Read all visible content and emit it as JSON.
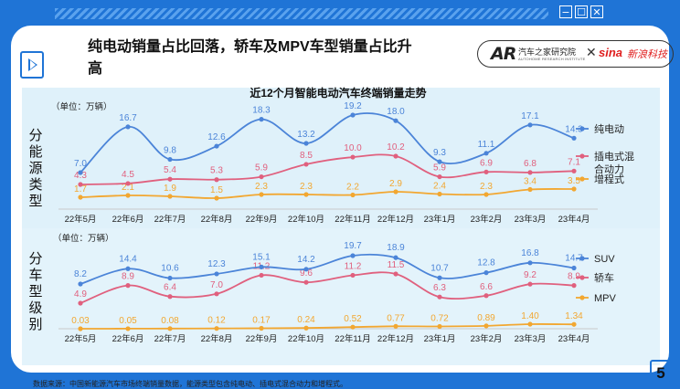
{
  "window": {
    "minimize": "−",
    "maximize": "☐",
    "close": "✕"
  },
  "headline": "纯电动销量占比回落，轿车及MPV车型销量占比升高",
  "logos": {
    "autohome_mark": "AR",
    "autohome_name": "汽车之家研究院",
    "autohome_en": "AUTOHOME RESEARCH INSTITUTE",
    "cross": "✕",
    "sina_mark": "sina",
    "sina_name": "新浪科技"
  },
  "left_labels": {
    "top": [
      "分",
      "能",
      "源",
      "类",
      "型"
    ],
    "bottom": [
      "分",
      "车",
      "型",
      "级",
      "别"
    ]
  },
  "footnote": "数据来源：中国新能源汽车市场终端销量数据，能源类型包含纯电动、插电式混合动力和增程式。",
  "page_number": "5",
  "colors": {
    "blue": "#4b84d8",
    "pink": "#e0607e",
    "orange": "#f2a731",
    "accent": "#1f74d6"
  },
  "chart_data": [
    {
      "type": "line",
      "title": "近12个月智能电动汽车终端销量走势",
      "unit_label": "（单位：万辆）",
      "legend_position": "right",
      "categories": [
        "22年5月",
        "22年6月",
        "22年7月",
        "22年8月",
        "22年9月",
        "22年10月",
        "22年11月",
        "22年12月",
        "23年1月",
        "23年2月",
        "23年3月",
        "23年4月"
      ],
      "series": [
        {
          "name": "纯电动",
          "color": "#4b84d8",
          "values": [
            7.0,
            16.7,
            9.8,
            12.6,
            18.3,
            13.2,
            19.2,
            18.0,
            9.3,
            11.1,
            17.1,
            14.3
          ],
          "labels": [
            "7.0",
            "16.7",
            "9.8",
            "12.6",
            "18.3",
            "13.2",
            "19.2",
            "18.0",
            "9.3",
            "11.1",
            "17.1",
            "14.3"
          ]
        },
        {
          "name": "插电式混合动力",
          "color": "#e0607e",
          "values": [
            4.3,
            4.5,
            5.4,
            5.3,
            5.9,
            8.5,
            10.0,
            10.2,
            5.9,
            6.9,
            6.8,
            7.1
          ],
          "labels": [
            "4.3",
            "4.5",
            "5.4",
            "5.3",
            "5.9",
            "8.5",
            "10.0",
            "10.2",
            "5.9",
            "6.9",
            "6.8",
            "7.1"
          ]
        },
        {
          "name": "增程式",
          "color": "#f2a731",
          "values": [
            1.7,
            2.1,
            1.9,
            1.5,
            2.3,
            2.3,
            2.2,
            2.9,
            2.4,
            2.3,
            3.4,
            3.5
          ],
          "labels": [
            "1.7",
            "2.1",
            "1.9",
            "1.5",
            "2.3",
            "2.3",
            "2.2",
            "2.9",
            "2.4",
            "2.3",
            "3.4",
            "3.5"
          ]
        }
      ]
    },
    {
      "type": "line",
      "unit_label": "（单位：万辆）",
      "legend_position": "right",
      "categories": [
        "22年5月",
        "22年6月",
        "22年7月",
        "22年8月",
        "22年9月",
        "22年10月",
        "22年11月",
        "22年12月",
        "23年1月",
        "23年2月",
        "23年3月",
        "23年4月"
      ],
      "series": [
        {
          "name": "SUV",
          "color": "#4b84d8",
          "values": [
            8.2,
            14.4,
            10.6,
            12.3,
            15.1,
            14.2,
            19.7,
            18.9,
            10.7,
            12.8,
            16.8,
            14.7
          ],
          "labels": [
            "8.2",
            "14.4",
            "10.6",
            "12.3",
            "15.1",
            "14.2",
            "19.7",
            "18.9",
            "10.7",
            "12.8",
            "16.8",
            "14.7"
          ]
        },
        {
          "name": "轿车",
          "color": "#e0607e",
          "values": [
            4.9,
            8.9,
            6.4,
            7.0,
            11.2,
            9.6,
            11.2,
            11.5,
            6.3,
            6.6,
            9.2,
            8.9
          ],
          "labels": [
            "4.9",
            "8.9",
            "6.4",
            "7.0",
            "11.2",
            "9.6",
            "11.2",
            "11.5",
            "6.3",
            "6.6",
            "9.2",
            "8.9"
          ]
        },
        {
          "name": "MPV",
          "color": "#f2a731",
          "values": [
            0.03,
            0.05,
            0.08,
            0.12,
            0.17,
            0.24,
            0.52,
            0.77,
            0.72,
            0.89,
            1.4,
            1.34
          ],
          "labels": [
            "0.03",
            "0.05",
            "0.08",
            "0.12",
            "0.17",
            "0.24",
            "0.52",
            "0.77",
            "0.72",
            "0.89",
            "1.40",
            "1.34"
          ]
        }
      ]
    }
  ]
}
